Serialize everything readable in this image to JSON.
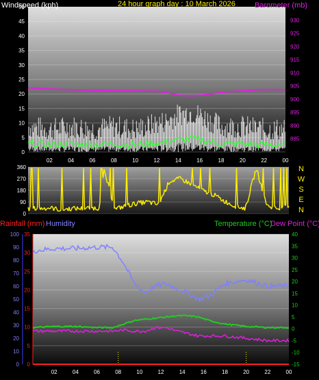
{
  "header": {
    "left_label": "Windspeed (kph)",
    "center_label": "24 hour graph day : 10 March 2026",
    "right_label": "Barometer (mb)"
  },
  "colors": {
    "windspeed": "#ffffff",
    "gust": "#dddddd",
    "wind_avg": "#33ff33",
    "barometer": "#e020e0",
    "direction": "#ffee00",
    "rainfall": "#ff2020",
    "humidity": "#8080ff",
    "temperature": "#22cc22",
    "dewpoint": "#e020e0",
    "title": "#ffee00"
  },
  "x_ticks": [
    "02",
    "04",
    "06",
    "08",
    "10",
    "12",
    "14",
    "16",
    "18",
    "20",
    "22",
    "00"
  ],
  "chart_data": [
    {
      "type": "line",
      "title": "24 hour graph day : 10 March 2026",
      "ylabel": "Windspeed (kph)",
      "y2label": "Barometer (mb)",
      "ylim": [
        0,
        50
      ],
      "y2lim": [
        880,
        935
      ],
      "yticks": [
        "0",
        "5",
        "10",
        "15",
        "20",
        "25",
        "30",
        "35",
        "40",
        "45",
        "50"
      ],
      "y2ticks": [
        "885",
        "890",
        "895",
        "900",
        "905",
        "910",
        "915",
        "920",
        "925",
        "930"
      ],
      "x": [
        0,
        2,
        4,
        6,
        8,
        10,
        12,
        13,
        14,
        15,
        16,
        17,
        18,
        20,
        22,
        24
      ],
      "series": [
        {
          "name": "Windspeed (kph)",
          "values": [
            8,
            7,
            8,
            7,
            8,
            7,
            9,
            10,
            12,
            13,
            12,
            10,
            8,
            8,
            7,
            7
          ]
        },
        {
          "name": "Barometer (mb)",
          "values": [
            904.3,
            903.9,
            903.6,
            903.4,
            903.3,
            903.2,
            903.0,
            902.4,
            901.6,
            901.3,
            901.5,
            902.0,
            902.6,
            903.2,
            903.7,
            903.6
          ]
        }
      ]
    },
    {
      "type": "line",
      "labels": [
        "N",
        "W",
        "S",
        "E",
        "N"
      ],
      "ylim": [
        0,
        360
      ],
      "yticks": [
        "0",
        "90",
        "180",
        "270",
        "360"
      ],
      "x": [
        0,
        1,
        2,
        3,
        4,
        5,
        6,
        6.5,
        7,
        8,
        9,
        10,
        11,
        12,
        13,
        14,
        15,
        16,
        17,
        18,
        19,
        20,
        21,
        22,
        23,
        24
      ],
      "series": [
        {
          "name": "Wind direction",
          "values": [
            40,
            40,
            45,
            30,
            40,
            40,
            45,
            40,
            330,
            35,
            60,
            80,
            90,
            70,
            250,
            270,
            230,
            180,
            150,
            100,
            60,
            40,
            350,
            60,
            40,
            50
          ]
        }
      ]
    },
    {
      "type": "line",
      "ylabel": "Rainfall (mm)",
      "y2label": "Temperature (°C) / Dew Point (°C)",
      "ylim": [
        0,
        35
      ],
      "y2lim": [
        -15,
        40
      ],
      "yticks": [
        "0",
        "5",
        "10",
        "15",
        "20",
        "25",
        "30",
        "35"
      ],
      "humidity_ticks": [
        "0",
        "10",
        "20",
        "30",
        "40",
        "50",
        "60",
        "70",
        "80",
        "90",
        "100"
      ],
      "y2ticks": [
        "-15",
        "-10",
        "-5",
        "0",
        "5",
        "10",
        "15",
        "20",
        "25",
        "30",
        "35",
        "40"
      ],
      "legend": [
        "Rainfall (mm)",
        "Humidity",
        "Temperature (°C)",
        "Dew Point (°C)"
      ],
      "x": [
        0,
        2,
        4,
        6,
        7.5,
        8.5,
        9.5,
        10.5,
        11.5,
        12.5,
        13.5,
        14.5,
        15.5,
        16.5,
        18,
        20,
        22,
        24
      ],
      "series": [
        {
          "name": "Humidity",
          "unit": "%",
          "values": [
            87,
            89,
            89,
            90,
            90,
            78,
            62,
            55,
            60,
            62,
            58,
            55,
            50,
            52,
            62,
            65,
            60,
            60
          ]
        },
        {
          "name": "Temperature (°C)",
          "values": [
            0.5,
            1,
            1,
            0.5,
            0.5,
            2,
            3.5,
            4,
            4.5,
            5,
            5.5,
            5.5,
            5,
            3.5,
            2,
            1,
            0.5,
            0.5
          ]
        },
        {
          "name": "Dew Point (°C)",
          "values": [
            -1,
            -1,
            -1,
            -1,
            -1,
            -0.5,
            -1,
            -1,
            0.5,
            0.5,
            -1,
            -2,
            -3,
            -3,
            -3,
            -4,
            -5,
            -5
          ]
        },
        {
          "name": "Rainfall (mm)",
          "values": [
            0,
            0,
            0,
            0,
            0,
            0,
            0,
            0,
            0,
            0,
            0,
            0,
            0,
            0,
            0,
            0,
            0,
            0
          ]
        }
      ]
    }
  ]
}
